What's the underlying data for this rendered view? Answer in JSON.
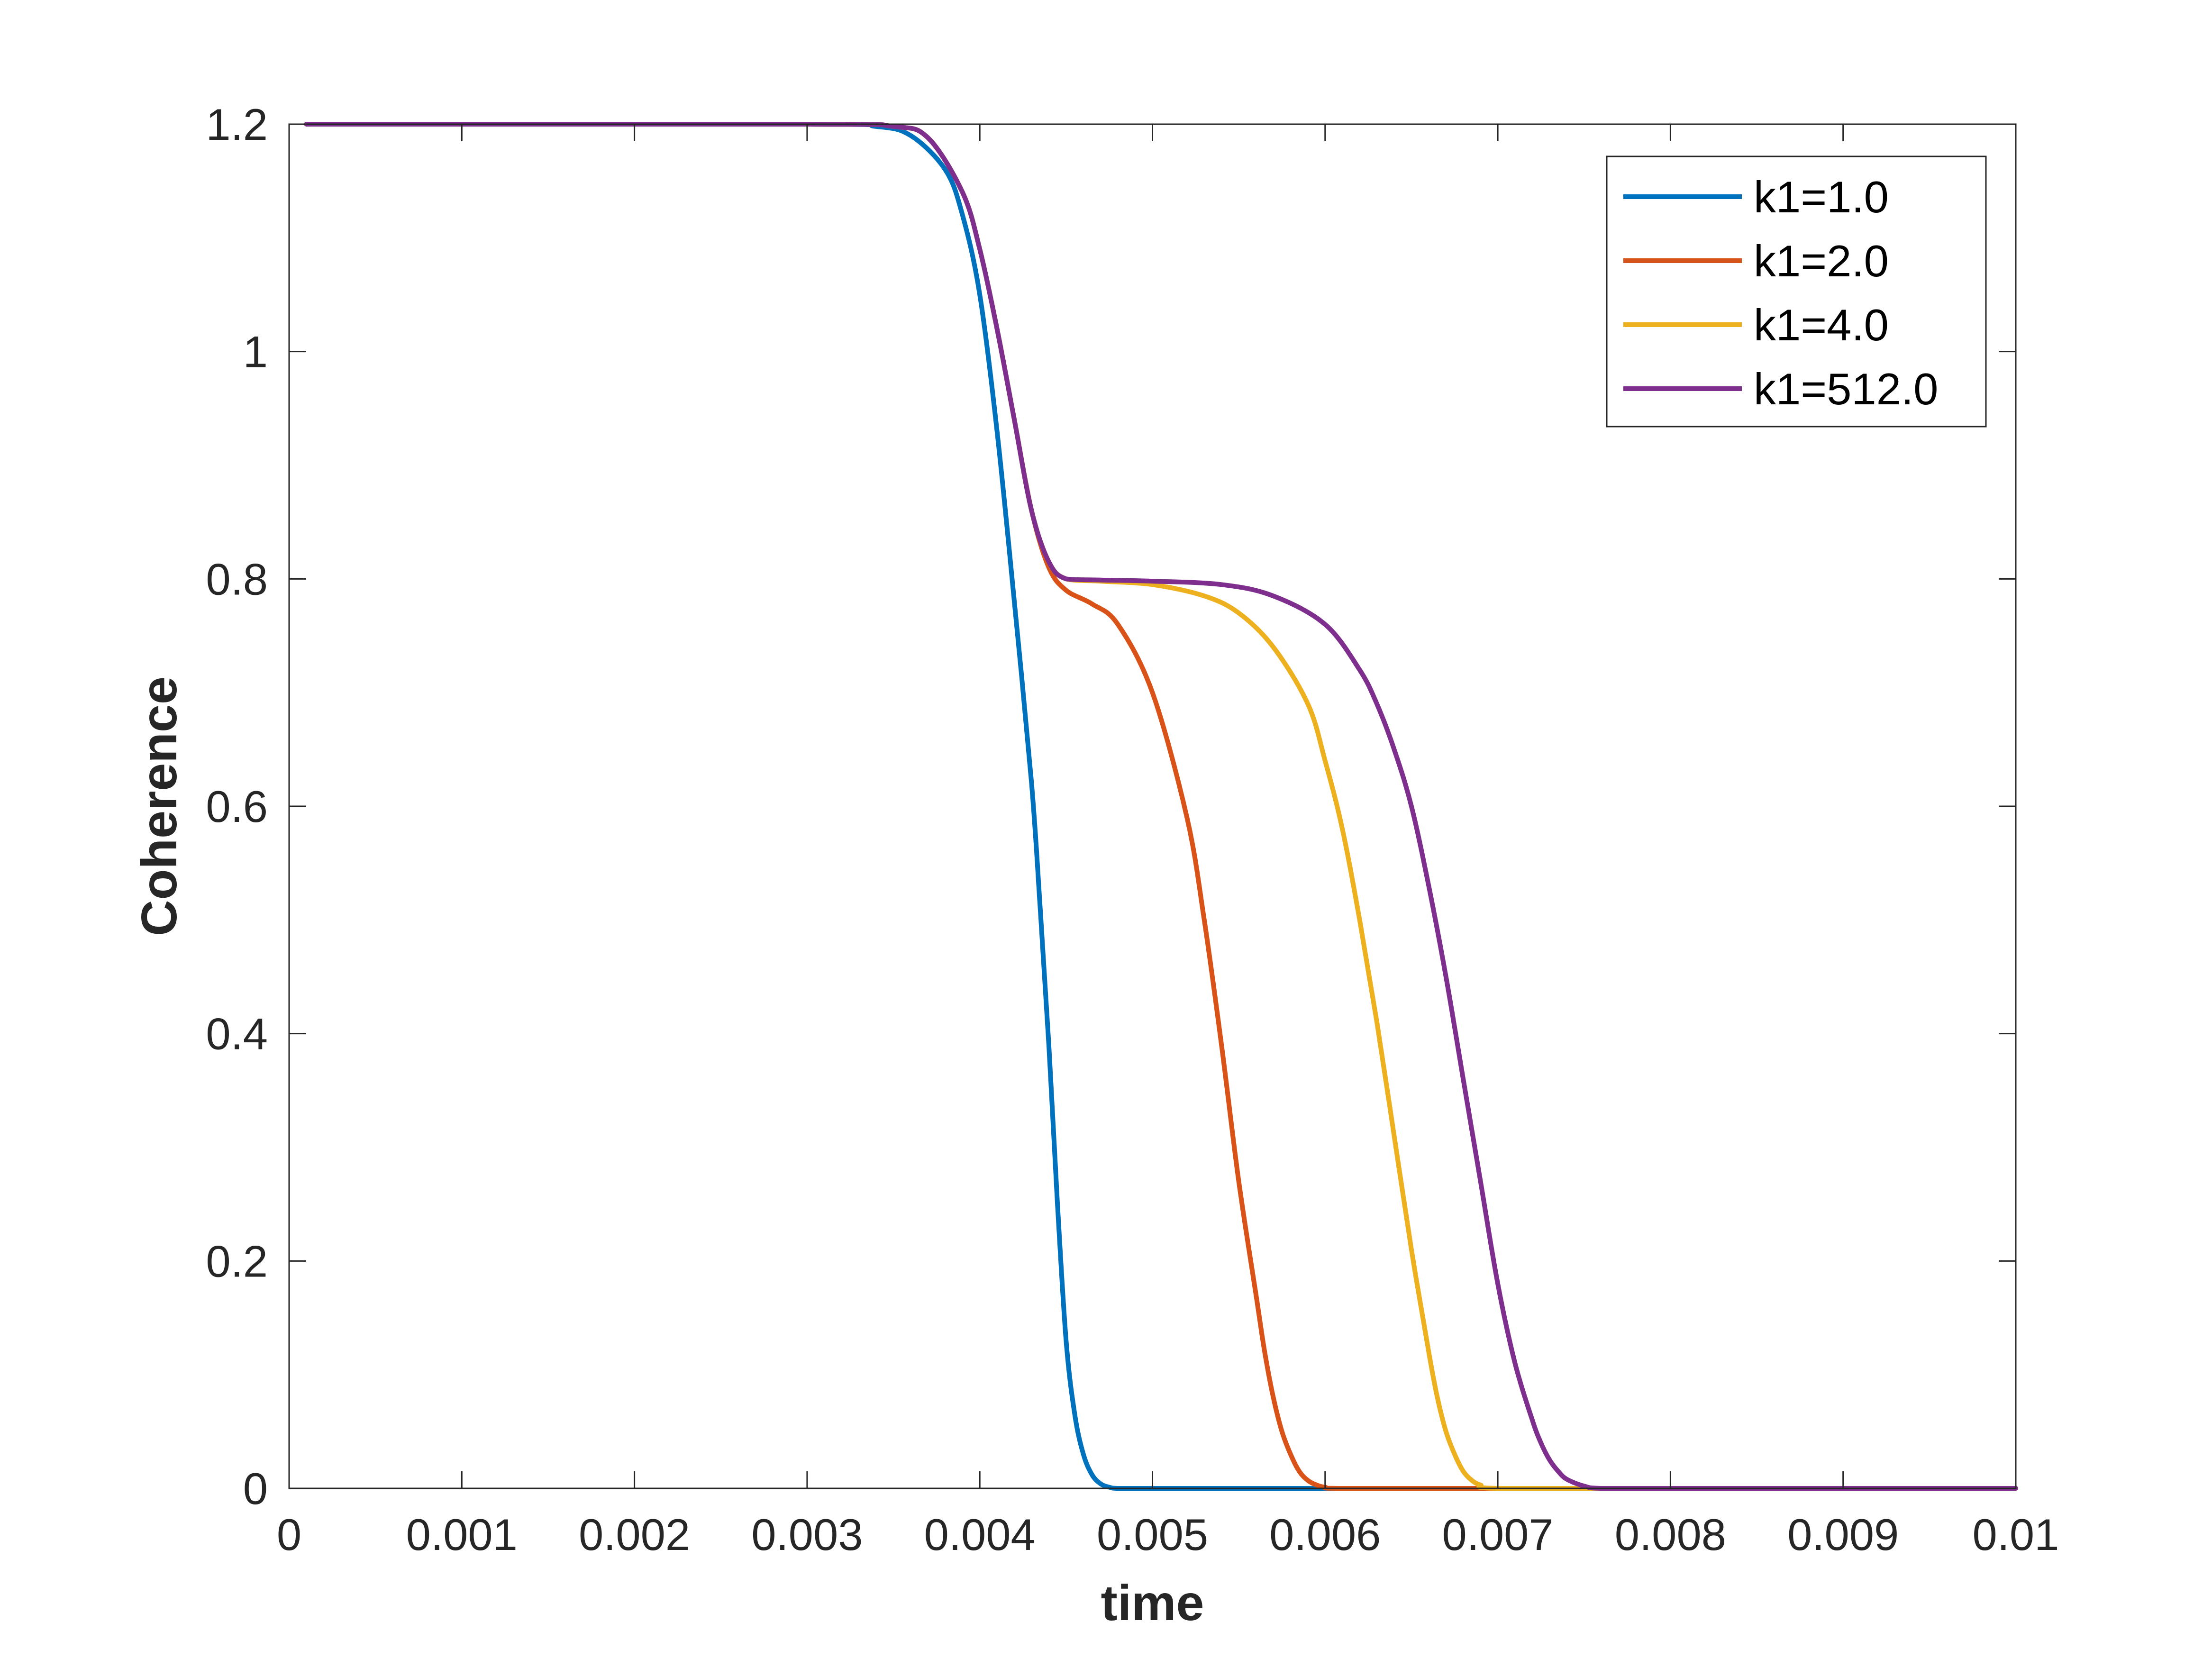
{
  "chart_data": {
    "type": "line",
    "title": "",
    "xlabel": "time",
    "ylabel": "Coherence",
    "xlim": [
      0,
      0.01
    ],
    "ylim": [
      0,
      1.2
    ],
    "xticks": [
      0,
      0.001,
      0.002,
      0.003,
      0.004,
      0.005,
      0.006,
      0.007,
      0.008,
      0.009,
      0.01
    ],
    "xtick_labels": [
      "0",
      "0.001",
      "0.002",
      "0.003",
      "0.004",
      "0.005",
      "0.006",
      "0.007",
      "0.008",
      "0.009",
      "0.01"
    ],
    "yticks": [
      0,
      0.2,
      0.4,
      0.6,
      0.8,
      1.0,
      1.2
    ],
    "ytick_labels": [
      "0",
      "0.2",
      "0.4",
      "0.6",
      "0.8",
      "1",
      "1.2"
    ],
    "grid": false,
    "legend_position": "top-right",
    "series": [
      {
        "name": "k1=1.0",
        "color": "#0072BD",
        "x": [
          0.0001,
          0.003,
          0.0034,
          0.0036,
          0.0038,
          0.0039,
          0.004,
          0.0041,
          0.0042,
          0.0043,
          0.00435,
          0.0044,
          0.00445,
          0.0045,
          0.00455,
          0.0046,
          0.00465,
          0.0047,
          0.00475,
          0.0048,
          0.005,
          0.006,
          0.007,
          0.008,
          0.009,
          0.01
        ],
        "y": [
          1.2,
          1.2,
          1.198,
          1.19,
          1.16,
          1.12,
          1.05,
          0.93,
          0.78,
          0.62,
          0.51,
          0.39,
          0.25,
          0.13,
          0.065,
          0.03,
          0.012,
          0.004,
          0.001,
          0.0,
          0.0,
          0.0,
          0.0,
          0.0,
          0.0,
          0.0
        ]
      },
      {
        "name": "k1=2.0",
        "color": "#D95319",
        "x": [
          0.0001,
          0.003,
          0.0035,
          0.0037,
          0.0039,
          0.004,
          0.0041,
          0.0042,
          0.0043,
          0.0044,
          0.0045,
          0.00465,
          0.0048,
          0.005,
          0.0052,
          0.0053,
          0.0054,
          0.0055,
          0.0056,
          0.00565,
          0.0057,
          0.00575,
          0.0058,
          0.00585,
          0.0059,
          0.00595,
          0.006,
          0.0061,
          0.007,
          0.008,
          0.01
        ],
        "y": [
          1.2,
          1.2,
          1.198,
          1.188,
          1.14,
          1.09,
          1.02,
          0.94,
          0.86,
          0.81,
          0.79,
          0.778,
          0.76,
          0.7,
          0.59,
          0.5,
          0.39,
          0.27,
          0.17,
          0.12,
          0.08,
          0.05,
          0.03,
          0.015,
          0.007,
          0.003,
          0.001,
          0.0,
          0.0,
          0.0,
          0.0
        ]
      },
      {
        "name": "k1=4.0",
        "color": "#EDB120",
        "x": [
          0.0001,
          0.003,
          0.0035,
          0.0037,
          0.0039,
          0.004,
          0.0041,
          0.0042,
          0.0043,
          0.0044,
          0.0045,
          0.0047,
          0.005,
          0.0053,
          0.0055,
          0.0057,
          0.0059,
          0.006,
          0.0061,
          0.0062,
          0.0063,
          0.0064,
          0.0065,
          0.0066,
          0.00665,
          0.0067,
          0.00675,
          0.0068,
          0.00685,
          0.0069,
          0.007,
          0.008,
          0.01
        ],
        "y": [
          1.2,
          1.2,
          1.198,
          1.188,
          1.14,
          1.09,
          1.02,
          0.94,
          0.86,
          0.815,
          0.8,
          0.798,
          0.795,
          0.785,
          0.77,
          0.74,
          0.69,
          0.64,
          0.58,
          0.5,
          0.41,
          0.31,
          0.21,
          0.12,
          0.08,
          0.05,
          0.03,
          0.015,
          0.007,
          0.003,
          0.0,
          0.0,
          0.0
        ]
      },
      {
        "name": "k1=512.0",
        "color": "#7E2F8E",
        "x": [
          0.0001,
          0.003,
          0.0035,
          0.0037,
          0.0039,
          0.004,
          0.0041,
          0.0042,
          0.0043,
          0.0044,
          0.0045,
          0.0047,
          0.005,
          0.0054,
          0.0057,
          0.006,
          0.0062,
          0.0063,
          0.0064,
          0.0065,
          0.0066,
          0.0067,
          0.0068,
          0.0069,
          0.007,
          0.0071,
          0.0072,
          0.00725,
          0.0073,
          0.00735,
          0.0074,
          0.0075,
          0.0076,
          0.008,
          0.01
        ],
        "y": [
          1.2,
          1.2,
          1.198,
          1.188,
          1.14,
          1.09,
          1.02,
          0.94,
          0.86,
          0.815,
          0.8,
          0.799,
          0.798,
          0.795,
          0.785,
          0.76,
          0.72,
          0.69,
          0.65,
          0.6,
          0.53,
          0.45,
          0.36,
          0.27,
          0.18,
          0.11,
          0.06,
          0.04,
          0.025,
          0.015,
          0.008,
          0.002,
          0.0,
          0.0,
          0.0
        ]
      }
    ]
  }
}
